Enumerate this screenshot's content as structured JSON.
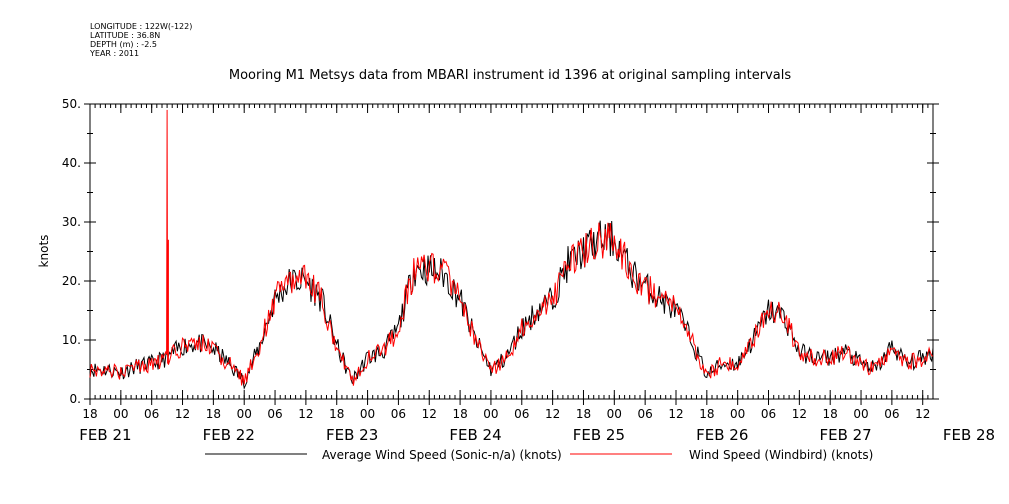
{
  "header": {
    "longitude": "LONGITUDE : 122W(-122)",
    "latitude": "LATITUDE : 36.8N",
    "depth": "DEPTH (m) : -2.5",
    "year": "YEAR : 2011"
  },
  "chart_data": {
    "type": "line",
    "title": "Mooring M1 Metsys data from MBARI instrument id 1396 at original sampling intervals",
    "ylabel": "knots",
    "xlabel": "",
    "ylim": [
      0,
      50
    ],
    "yticks": [
      0,
      10,
      20,
      30,
      40,
      50
    ],
    "ytick_labels": [
      "0.",
      "10.",
      "20.",
      "30.",
      "40.",
      "50."
    ],
    "x_unit": "hours since FEB 21 00:00, 2011",
    "xlim": [
      -6,
      158
    ],
    "xtick_labels": [
      "18",
      "00",
      "06",
      "12",
      "18",
      "00",
      "06",
      "12",
      "18",
      "00",
      "06",
      "12",
      "18",
      "00",
      "06",
      "12",
      "18",
      "00",
      "06",
      "12",
      "18",
      "00",
      "06",
      "12",
      "18",
      "00",
      "06",
      "12"
    ],
    "xtick_hours": [
      -6,
      0,
      6,
      12,
      18,
      24,
      30,
      36,
      42,
      48,
      54,
      60,
      66,
      72,
      78,
      84,
      90,
      96,
      102,
      108,
      114,
      120,
      126,
      132,
      138,
      144,
      150,
      156
    ],
    "date_labels": [
      {
        "text": "FEB 21",
        "hour": -3
      },
      {
        "text": "FEB 22",
        "hour": 21
      },
      {
        "text": "FEB 23",
        "hour": 45
      },
      {
        "text": "FEB 24",
        "hour": 69
      },
      {
        "text": "FEB 25",
        "hour": 93
      },
      {
        "text": "FEB 26",
        "hour": 117
      },
      {
        "text": "FEB 27",
        "hour": 141
      },
      {
        "text": "FEB 28",
        "hour": 165
      }
    ],
    "grid": false,
    "legend": "bottom",
    "series": [
      {
        "name": "Average Wind Speed (Sonic-n/a) (knots)",
        "color": "#000000",
        "x": [
          -6,
          -3,
          0,
          3,
          6,
          9,
          12,
          15,
          18,
          21,
          24,
          27,
          30,
          33,
          36,
          39,
          42,
          45,
          48,
          51,
          54,
          57,
          60,
          63,
          66,
          69,
          72,
          75,
          78,
          81,
          84,
          87,
          90,
          93,
          96,
          99,
          102,
          105,
          108,
          111,
          114,
          117,
          120,
          123,
          126,
          129,
          132,
          135,
          138,
          141,
          144,
          147,
          150,
          153,
          156,
          158
        ],
        "y": [
          5,
          5,
          4.5,
          5.5,
          6,
          7,
          9,
          9.5,
          8.5,
          6,
          3,
          9,
          17,
          20,
          20,
          17,
          9,
          3,
          7,
          8,
          12,
          22,
          22,
          21,
          17,
          10,
          5,
          7,
          12,
          15,
          17,
          23,
          25,
          27,
          27,
          22,
          19,
          17,
          15,
          10,
          4,
          6,
          6,
          10,
          15,
          14,
          8,
          7,
          7,
          8,
          6,
          5,
          9,
          6,
          7,
          8
        ]
      },
      {
        "name": "Wind Speed (Windbird) (knots)",
        "color": "#ff0000",
        "x": [
          -6,
          -3,
          0,
          3,
          6,
          9,
          12,
          15,
          18,
          21,
          24,
          27,
          30,
          33,
          36,
          39,
          42,
          45,
          48,
          51,
          54,
          57,
          60,
          63,
          66,
          69,
          72,
          75,
          78,
          81,
          84,
          87,
          90,
          93,
          96,
          99,
          102,
          105,
          108,
          111,
          114,
          117,
          120,
          123,
          126,
          129,
          132,
          135,
          138,
          141,
          144,
          147,
          150,
          153,
          156,
          158
        ],
        "y": [
          5,
          5,
          4.5,
          5.5,
          6,
          7,
          9,
          9.5,
          8.5,
          6,
          3,
          9,
          17,
          20,
          20,
          17,
          9,
          3,
          7,
          8,
          12,
          22,
          22,
          21,
          17,
          10,
          5,
          7,
          12,
          15,
          17,
          23,
          25,
          27,
          27,
          22,
          19,
          17,
          15,
          10,
          4,
          6,
          6,
          10,
          15,
          14,
          8,
          7,
          7,
          8,
          6,
          5,
          9,
          6,
          7,
          8
        ],
        "spike": {
          "x": [
            8.9,
            9.0,
            9.1,
            9.25
          ],
          "y": [
            8,
            49,
            6,
            27
          ]
        }
      }
    ]
  }
}
